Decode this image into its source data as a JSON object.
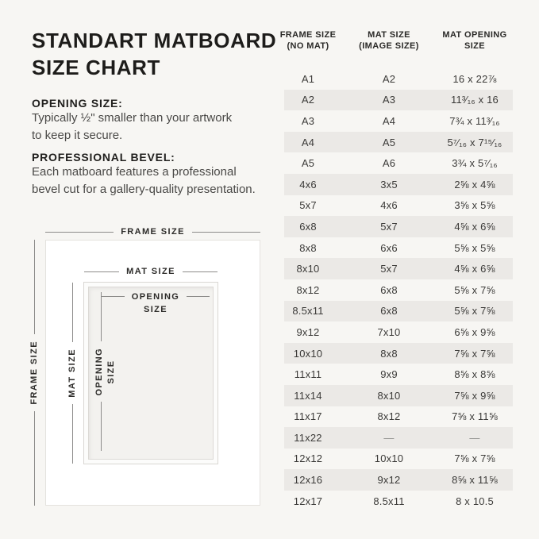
{
  "colors": {
    "background": "#f7f6f3",
    "stripe": "#ebe9e6",
    "title_text": "#1d1c1a",
    "body_text": "#4a4947",
    "table_text": "#3b3a38",
    "dimension_line": "#8d8c8a"
  },
  "title": "STANDART MATBOARD\nSIZE CHART",
  "notes": [
    {
      "heading": "OPENING SIZE:",
      "body": "Typically ½\" smaller than your artwork\nto keep it secure."
    },
    {
      "heading": "PROFESSIONAL BEVEL:",
      "body": "Each matboard features a professional\nbevel cut for a gallery-quality presentation."
    }
  ],
  "diagram": {
    "frame_label": "FRAME SIZE",
    "mat_label": "MAT SIZE",
    "opening_label_line1": "OPENING",
    "opening_label_line2": "SIZE"
  },
  "table": {
    "headers": [
      {
        "label": "FRAME SIZE\n(NO MAT)"
      },
      {
        "label": "MAT SIZE\n(IMAGE SIZE)"
      },
      {
        "label": "MAT OPENING\nSIZE"
      }
    ],
    "rows": [
      [
        "A1",
        "A2",
        "16 x 22⅞"
      ],
      [
        "A2",
        "A3",
        "11³⁄₁₆ x 16"
      ],
      [
        "A3",
        "A4",
        "7¾ x 11³⁄₁₆"
      ],
      [
        "A4",
        "A5",
        "5⁷⁄₁₆ x 7¹⁵⁄₁₆"
      ],
      [
        "A5",
        "A6",
        "3¾ x 5⁷⁄₁₆"
      ],
      [
        "4x6",
        "3x5",
        "2⅝ x 4⅝"
      ],
      [
        "5x7",
        "4x6",
        "3⅝ x 5⅝"
      ],
      [
        "6x8",
        "5x7",
        "4⅝ x 6⅝"
      ],
      [
        "8x8",
        "6x6",
        "5⅝ x 5⅝"
      ],
      [
        "8x10",
        "5x7",
        "4⅝ x 6⅝"
      ],
      [
        "8x12",
        "6x8",
        "5⅝ x 7⅝"
      ],
      [
        "8.5x11",
        "6x8",
        "5⅝ x 7⅝"
      ],
      [
        "9x12",
        "7x10",
        "6⅝ x 9⅝"
      ],
      [
        "10x10",
        "8x8",
        "7⅝ x 7⅝"
      ],
      [
        "11x11",
        "9x9",
        "8⅝ x 8⅝"
      ],
      [
        "11x14",
        "8x10",
        "7⅝ x 9⅝"
      ],
      [
        "11x17",
        "8x12",
        "7⅝ x 11⅝"
      ],
      [
        "11x22",
        "—",
        "—"
      ],
      [
        "12x12",
        "10x10",
        "7⅝ x 7⅝"
      ],
      [
        "12x16",
        "9x12",
        "8⅝ x 11⅝"
      ],
      [
        "12x17",
        "8.5x11",
        "8 x 10.5"
      ]
    ]
  }
}
